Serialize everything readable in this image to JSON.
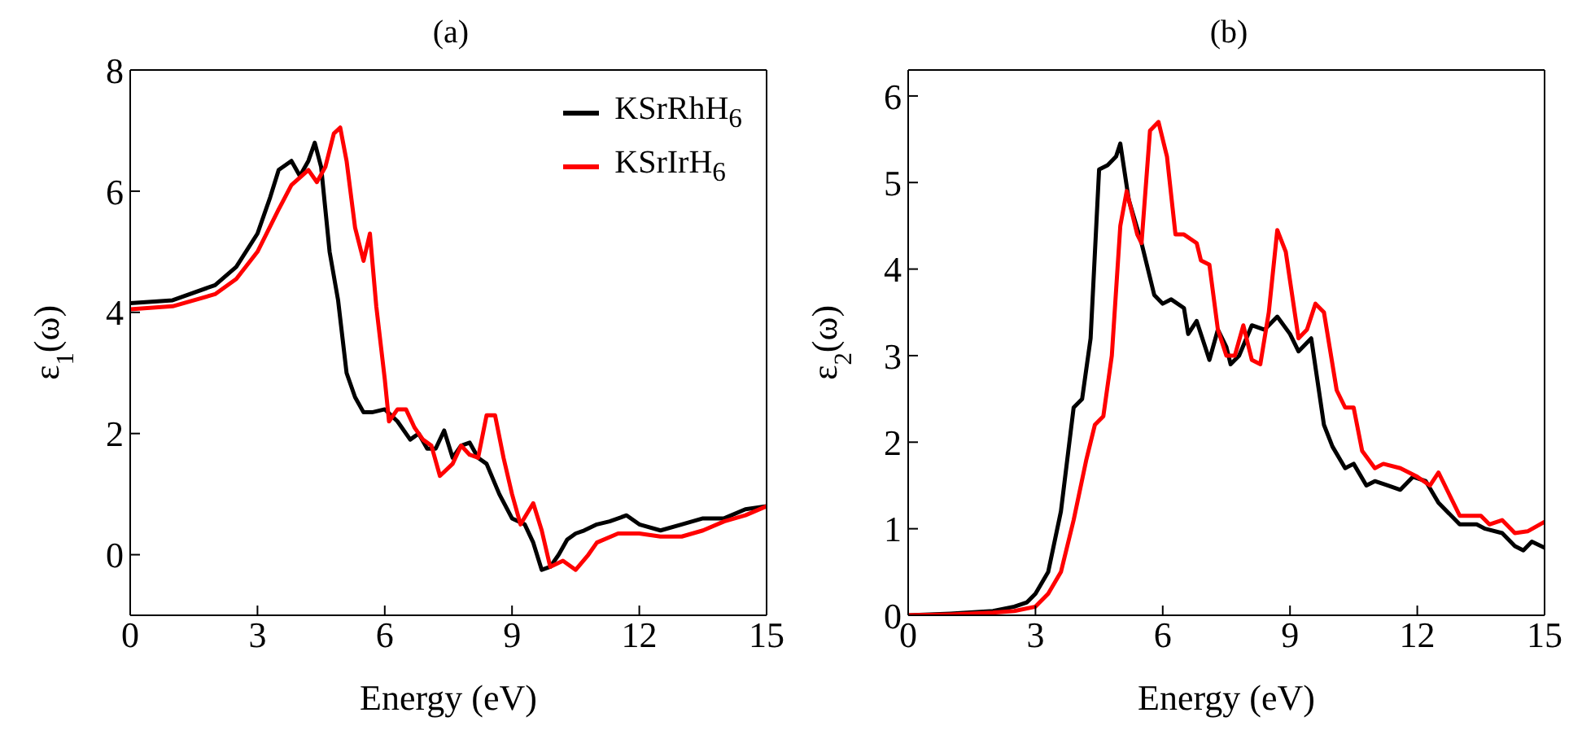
{
  "chart_data": [
    {
      "type": "line",
      "title": "(a)",
      "xlabel": "Energy (eV)",
      "ylabel": "ε$_{1}$(ω)",
      "xlim": [
        0,
        15
      ],
      "xticks": [
        0,
        3,
        6,
        9,
        12,
        15
      ],
      "ylim": [
        -1,
        8
      ],
      "yticks": [
        0,
        2,
        4,
        6,
        8
      ],
      "grid": false,
      "legend": "top right",
      "series": [
        {
          "name": "KSrRhH$_{6}$",
          "color": "#000000",
          "x": [
            0,
            1,
            2,
            2.5,
            3,
            3.3,
            3.5,
            3.8,
            4.0,
            4.2,
            4.35,
            4.5,
            4.7,
            4.9,
            5.1,
            5.3,
            5.5,
            5.7,
            6.0,
            6.3,
            6.6,
            6.8,
            7.0,
            7.2,
            7.4,
            7.6,
            7.8,
            8.0,
            8.2,
            8.4,
            8.7,
            9.0,
            9.3,
            9.5,
            9.7,
            9.9,
            10.1,
            10.3,
            10.5,
            10.7,
            11.0,
            11.3,
            11.7,
            12.0,
            12.5,
            13.0,
            13.5,
            14.0,
            14.5,
            15.0
          ],
          "values": [
            4.15,
            4.2,
            4.45,
            4.75,
            5.3,
            5.9,
            6.35,
            6.5,
            6.25,
            6.5,
            6.8,
            6.4,
            5.0,
            4.2,
            3.0,
            2.6,
            2.35,
            2.35,
            2.4,
            2.2,
            1.9,
            2.0,
            1.75,
            1.75,
            2.05,
            1.6,
            1.8,
            1.85,
            1.6,
            1.5,
            1.0,
            0.6,
            0.5,
            0.2,
            -0.25,
            -0.2,
            0.0,
            0.25,
            0.35,
            0.4,
            0.5,
            0.55,
            0.65,
            0.5,
            0.4,
            0.5,
            0.6,
            0.6,
            0.75,
            0.8
          ]
        },
        {
          "name": "KSrIrH$_{6}$",
          "color": "#ff0000",
          "x": [
            0,
            1,
            2,
            2.5,
            3,
            3.5,
            3.8,
            4.2,
            4.4,
            4.6,
            4.8,
            4.95,
            5.1,
            5.3,
            5.5,
            5.65,
            5.8,
            6.0,
            6.1,
            6.3,
            6.5,
            6.7,
            6.9,
            7.1,
            7.3,
            7.6,
            7.8,
            8.0,
            8.2,
            8.4,
            8.6,
            8.8,
            9.0,
            9.2,
            9.5,
            9.7,
            9.9,
            10.2,
            10.5,
            10.8,
            11.0,
            11.5,
            12.0,
            12.5,
            13.0,
            13.5,
            14.0,
            14.5,
            15.0
          ],
          "values": [
            4.05,
            4.1,
            4.3,
            4.55,
            5.0,
            5.7,
            6.1,
            6.35,
            6.15,
            6.4,
            6.95,
            7.05,
            6.5,
            5.4,
            4.85,
            5.3,
            4.1,
            2.9,
            2.2,
            2.4,
            2.4,
            2.1,
            1.9,
            1.8,
            1.3,
            1.5,
            1.8,
            1.65,
            1.6,
            2.3,
            2.3,
            1.6,
            1.0,
            0.5,
            0.85,
            0.4,
            -0.2,
            -0.1,
            -0.25,
            0.0,
            0.2,
            0.35,
            0.35,
            0.3,
            0.3,
            0.4,
            0.55,
            0.65,
            0.8
          ]
        }
      ]
    },
    {
      "type": "line",
      "title": "(b)",
      "xlabel": "Energy (eV)",
      "ylabel": "ε$_{2}$(ω)",
      "xlim": [
        0,
        15
      ],
      "xticks": [
        0,
        3,
        6,
        9,
        12,
        15
      ],
      "ylim": [
        0,
        6.3
      ],
      "yticks": [
        0,
        1,
        2,
        3,
        4,
        5,
        6
      ],
      "grid": false,
      "series": [
        {
          "color": "#000000",
          "x": [
            0,
            1,
            2,
            2.5,
            2.8,
            3.0,
            3.3,
            3.6,
            3.9,
            4.1,
            4.3,
            4.5,
            4.7,
            4.9,
            5.0,
            5.2,
            5.5,
            5.8,
            6.0,
            6.2,
            6.5,
            6.6,
            6.8,
            7.0,
            7.1,
            7.3,
            7.5,
            7.6,
            7.8,
            8.1,
            8.4,
            8.7,
            9.0,
            9.2,
            9.5,
            9.8,
            10.0,
            10.3,
            10.5,
            10.8,
            11.0,
            11.3,
            11.6,
            11.9,
            12.2,
            12.5,
            13.0,
            13.4,
            13.6,
            14.0,
            14.3,
            14.5,
            14.7,
            15.0
          ],
          "values": [
            0,
            0.02,
            0.05,
            0.1,
            0.15,
            0.25,
            0.5,
            1.2,
            2.4,
            2.5,
            3.2,
            5.15,
            5.2,
            5.3,
            5.45,
            4.8,
            4.3,
            3.7,
            3.6,
            3.65,
            3.55,
            3.25,
            3.4,
            3.1,
            2.95,
            3.3,
            3.1,
            2.9,
            3.0,
            3.35,
            3.3,
            3.45,
            3.25,
            3.05,
            3.2,
            2.2,
            1.95,
            1.7,
            1.75,
            1.5,
            1.55,
            1.5,
            1.45,
            1.6,
            1.55,
            1.3,
            1.05,
            1.05,
            1.0,
            0.95,
            0.8,
            0.75,
            0.85,
            0.78
          ]
        },
        {
          "color": "#ff0000",
          "x": [
            0,
            1,
            2,
            2.5,
            3,
            3.3,
            3.6,
            3.9,
            4.2,
            4.4,
            4.6,
            4.8,
            5.0,
            5.15,
            5.4,
            5.5,
            5.7,
            5.9,
            6.1,
            6.3,
            6.5,
            6.8,
            6.9,
            7.1,
            7.3,
            7.5,
            7.7,
            7.9,
            8.1,
            8.3,
            8.5,
            8.7,
            8.9,
            9.2,
            9.4,
            9.6,
            9.8,
            10.1,
            10.3,
            10.5,
            10.7,
            11.0,
            11.2,
            11.6,
            12.0,
            12.3,
            12.5,
            13.0,
            13.5,
            13.7,
            14.0,
            14.3,
            14.6,
            15.0
          ],
          "values": [
            0,
            0.01,
            0.03,
            0.05,
            0.1,
            0.25,
            0.5,
            1.1,
            1.8,
            2.2,
            2.3,
            3.0,
            4.5,
            4.9,
            4.4,
            4.3,
            5.6,
            5.7,
            5.3,
            4.4,
            4.4,
            4.3,
            4.1,
            4.05,
            3.3,
            3.0,
            3.0,
            3.35,
            2.95,
            2.9,
            3.5,
            4.45,
            4.2,
            3.2,
            3.3,
            3.6,
            3.5,
            2.6,
            2.4,
            2.4,
            1.9,
            1.7,
            1.75,
            1.7,
            1.6,
            1.5,
            1.65,
            1.15,
            1.15,
            1.05,
            1.1,
            0.95,
            0.97,
            1.08
          ]
        }
      ]
    }
  ]
}
